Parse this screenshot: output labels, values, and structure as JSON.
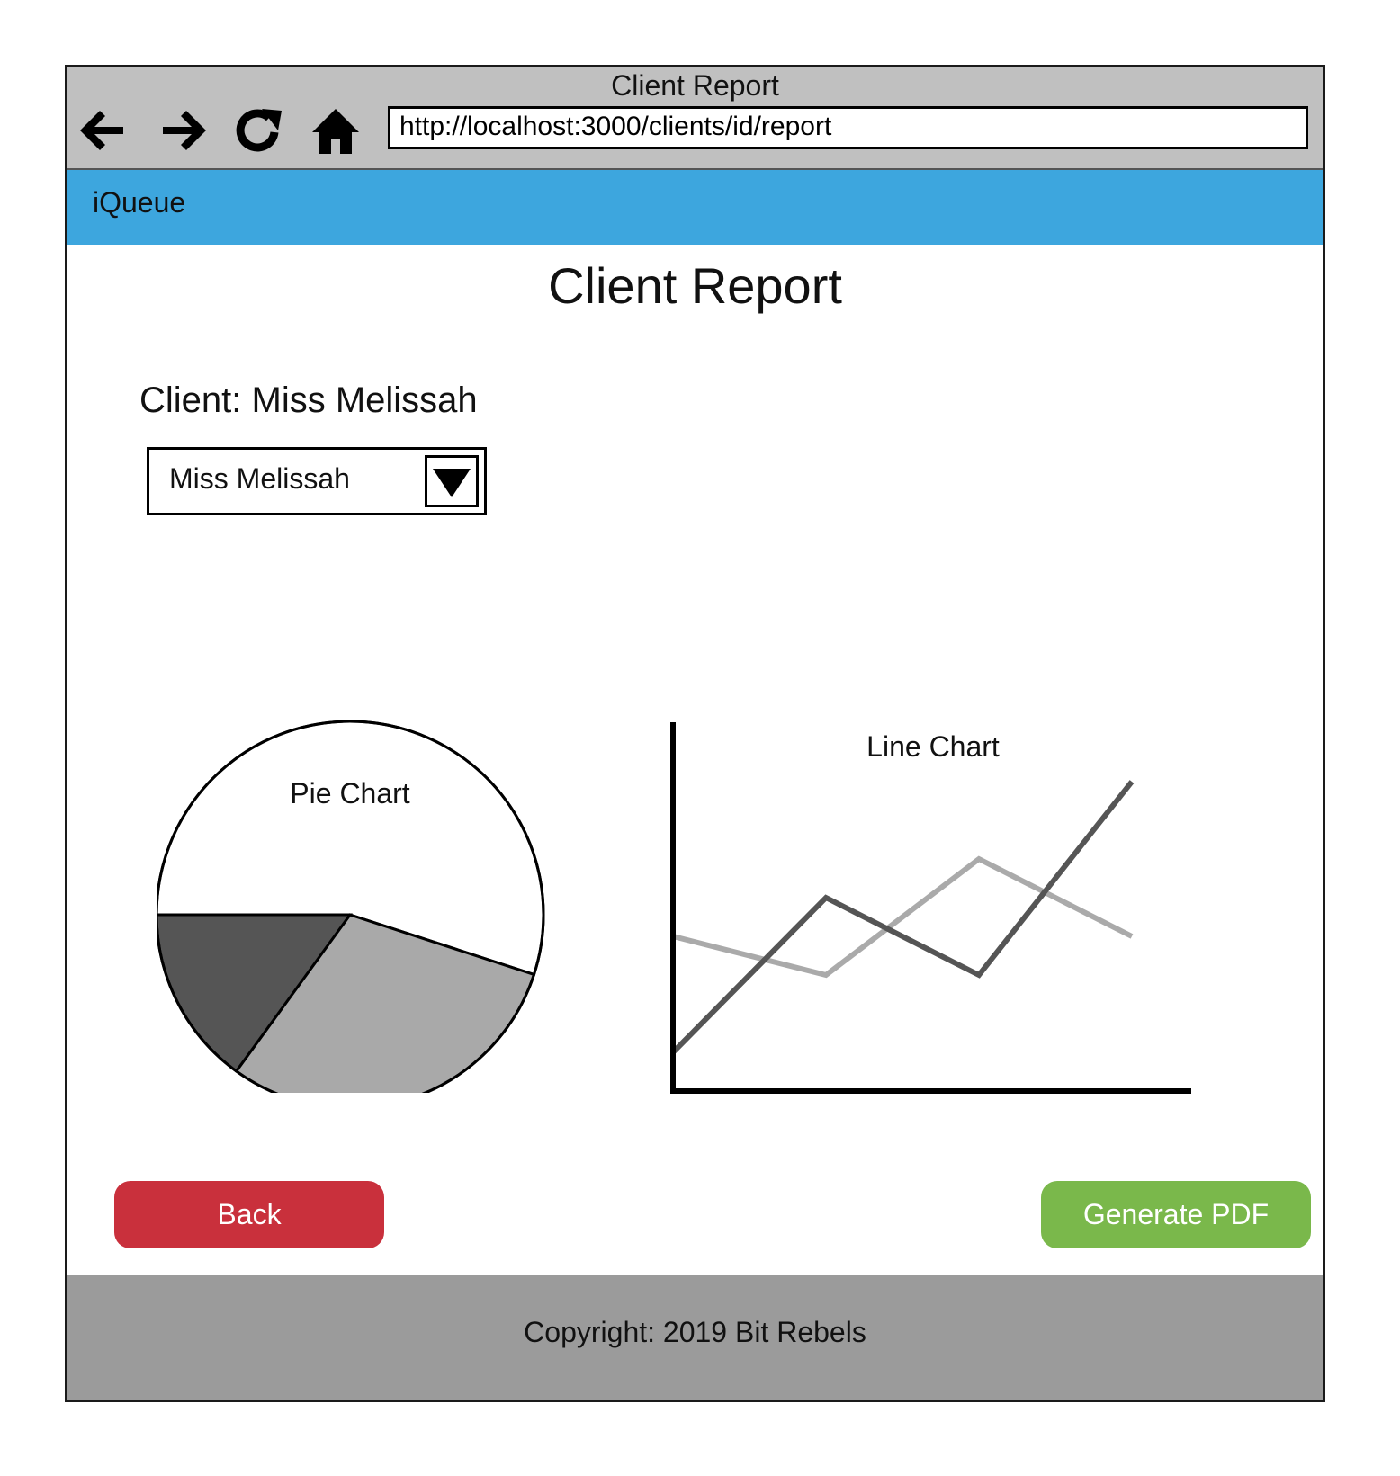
{
  "browser": {
    "window_title": "Client Report",
    "url": "http://localhost:3000/clients/id/report"
  },
  "app": {
    "brand": "iQueue"
  },
  "page": {
    "title": "Client Report",
    "client_label": "Client: Miss Melissah",
    "client_select": {
      "selected": "Miss Melissah"
    }
  },
  "icons": [
    "back-arrow-icon",
    "forward-arrow-icon",
    "reload-icon",
    "home-icon",
    "chevron-down-icon"
  ],
  "chart_data": [
    {
      "type": "pie",
      "title": "Pie Chart",
      "slices": [
        {
          "value": 55,
          "color": "#ffffff"
        },
        {
          "value": 30,
          "color": "#a9a9a9"
        },
        {
          "value": 15,
          "color": "#555555"
        }
      ]
    },
    {
      "type": "line",
      "title": "Line Chart",
      "x": [
        1,
        2,
        3,
        4
      ],
      "ylim": [
        0,
        10
      ],
      "series": [
        {
          "values": [
            4,
            3,
            6,
            4
          ],
          "color": "#aaaaaa"
        },
        {
          "values": [
            1,
            5,
            3,
            8
          ],
          "color": "#555555"
        }
      ]
    }
  ],
  "buttons": {
    "back": "Back",
    "generate_pdf": "Generate PDF"
  },
  "footer": {
    "text": "Copyright: 2019 Bit Rebels"
  }
}
